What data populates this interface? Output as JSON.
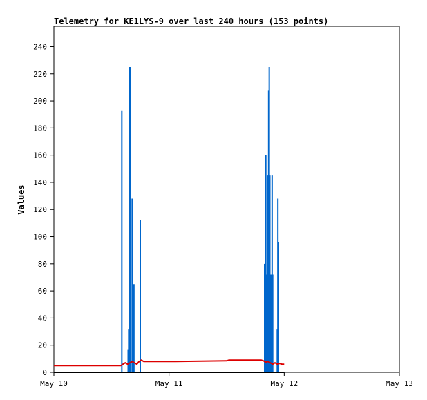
{
  "chart_data": {
    "type": "line",
    "title": "Telemetry for KE1LYS-9 over last 240 hours (153 points)",
    "xlabel": "",
    "ylabel": "Values",
    "xlim": [
      "May 10",
      "May 13"
    ],
    "ylim": [
      0,
      255
    ],
    "y_ticks": [
      0,
      20,
      40,
      60,
      80,
      100,
      120,
      140,
      160,
      180,
      200,
      220,
      240
    ],
    "x_ticks": [
      "May 10",
      "May 11",
      "May 12",
      "May 13"
    ],
    "grid": false,
    "legend": "none",
    "series": [
      {
        "color": "#0066cc",
        "style": "spikes",
        "x": [
          0.59,
          0.66,
          0.63,
          0.645,
          0.65,
          0.655,
          0.66,
          0.665,
          0.68,
          0.695,
          0.75,
          1.83,
          1.84,
          1.845,
          1.855,
          1.865,
          1.87,
          1.875,
          1.885,
          1.895,
          1.9,
          1.915,
          1.925,
          1.94,
          1.945,
          1.95
        ],
        "y": [
          193,
          0,
          0,
          17,
          32,
          112,
          225,
          65,
          128,
          65,
          112,
          80,
          160,
          72,
          145,
          208,
          225,
          145,
          72,
          145,
          72,
          0,
          0,
          32,
          128,
          96
        ]
      },
      {
        "color": "#dd0000",
        "style": "line",
        "x": [
          0.0,
          0.5,
          0.58,
          0.6,
          0.62,
          0.64,
          0.66,
          0.68,
          0.7,
          0.72,
          0.74,
          0.76,
          0.78,
          1.0,
          1.02,
          1.5,
          1.52,
          1.8,
          1.82,
          1.84,
          1.86,
          1.88,
          1.9,
          1.92,
          1.94,
          1.96,
          1.98,
          2.0
        ],
        "y": [
          5,
          5,
          5,
          6,
          7,
          6,
          7,
          8,
          7,
          6,
          8,
          9,
          8,
          8,
          8,
          8.5,
          9,
          9,
          8.5,
          7.5,
          8,
          7,
          6,
          7,
          6,
          6.5,
          6,
          6
        ]
      },
      {
        "color": "#000000",
        "style": "line",
        "x": [
          0.0,
          2.0
        ],
        "y": [
          0,
          0
        ]
      }
    ]
  }
}
